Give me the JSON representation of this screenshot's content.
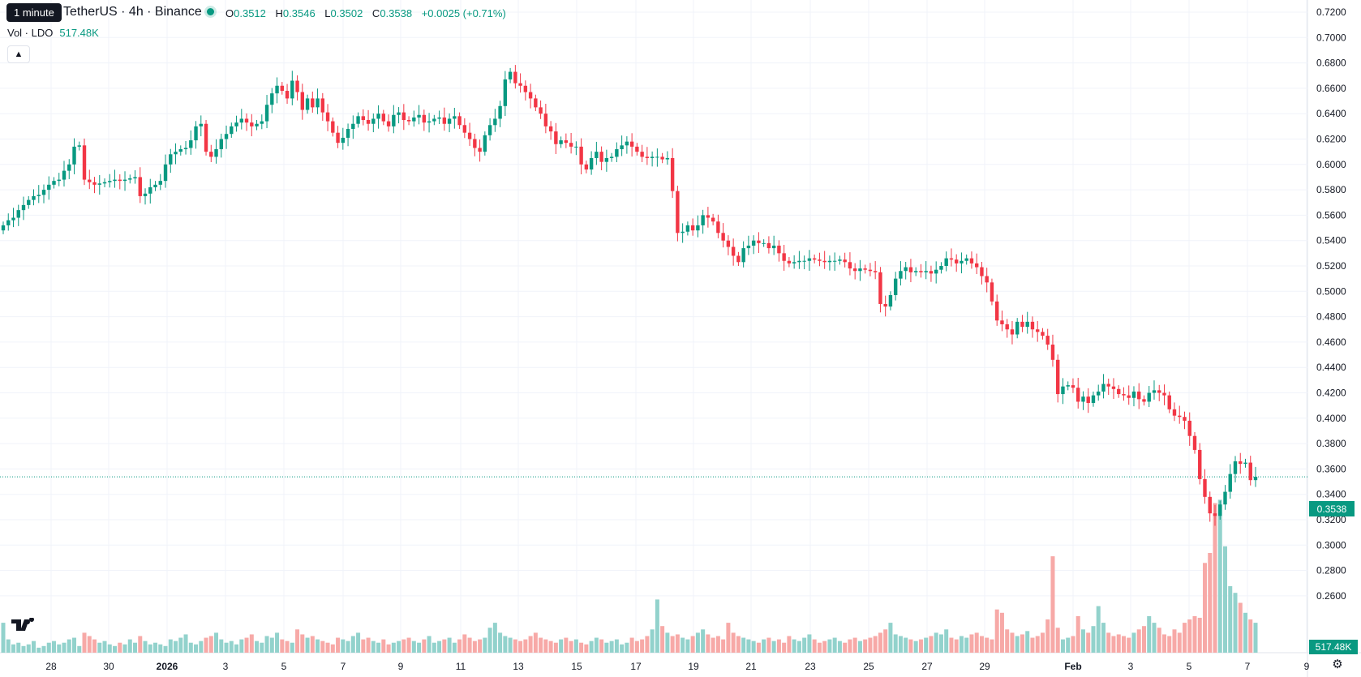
{
  "header": {
    "tooltip": "1 minute",
    "symbol": "TetherUS · 4h · Binance",
    "ohlc": [
      {
        "label": "O",
        "value": "0.3512"
      },
      {
        "label": "H",
        "value": "0.3546"
      },
      {
        "label": "L",
        "value": "0.3502"
      },
      {
        "label": "C",
        "value": "0.3538"
      }
    ],
    "change": "+0.0025 (+0.71%)",
    "volume_label": "Vol · LDO",
    "volume_value": "517.48K"
  },
  "price_badge": "0.3538",
  "volume_badge": "517.48K",
  "colors": {
    "up": "#089981",
    "down": "#f23645",
    "up_volume": "#92d2cc",
    "down_volume": "#f7a9a7",
    "grid": "#f0f3fa",
    "last_price_line": "#089981"
  },
  "icons": {
    "logo": "tradingview-logo-icon",
    "settings": "settings-gear-icon",
    "collapse": "chevron-up-icon"
  },
  "chart_data": {
    "type": "candlestick",
    "title": "TetherUS · 4h · Binance",
    "last_price": 0.3538,
    "yticks": [
      "0.7200",
      "0.7000",
      "0.6800",
      "0.6600",
      "0.6400",
      "0.6200",
      "0.6000",
      "0.5800",
      "0.5600",
      "0.5400",
      "0.5200",
      "0.5000",
      "0.4800",
      "0.4600",
      "0.4400",
      "0.4200",
      "0.4000",
      "0.3800",
      "0.3600",
      "0.3400",
      "0.3200",
      "0.3000",
      "0.2800",
      "0.2600"
    ],
    "xticks": [
      "28",
      "30",
      "2026",
      "3",
      "5",
      "7",
      "9",
      "11",
      "13",
      "15",
      "17",
      "19",
      "21",
      "23",
      "25",
      "27",
      "29",
      "Feb",
      "3",
      "5",
      "7",
      "9"
    ],
    "ylim": [
      0.246,
      0.732
    ],
    "close_series": [
      0.552,
      0.556,
      0.558,
      0.564,
      0.568,
      0.572,
      0.575,
      0.576,
      0.58,
      0.584,
      0.587,
      0.588,
      0.595,
      0.6,
      0.614,
      0.615,
      0.588,
      0.586,
      0.584,
      0.585,
      0.586,
      0.587,
      0.588,
      0.587,
      0.588,
      0.589,
      0.59,
      0.575,
      0.577,
      0.582,
      0.584,
      0.587,
      0.6,
      0.608,
      0.61,
      0.612,
      0.613,
      0.619,
      0.63,
      0.632,
      0.61,
      0.606,
      0.612,
      0.62,
      0.624,
      0.63,
      0.633,
      0.636,
      0.633,
      0.63,
      0.632,
      0.634,
      0.647,
      0.656,
      0.662,
      0.658,
      0.652,
      0.666,
      0.657,
      0.643,
      0.652,
      0.645,
      0.652,
      0.641,
      0.634,
      0.625,
      0.617,
      0.621,
      0.628,
      0.632,
      0.638,
      0.635,
      0.632,
      0.636,
      0.64,
      0.634,
      0.63,
      0.639,
      0.641,
      0.635,
      0.634,
      0.637,
      0.639,
      0.633,
      0.634,
      0.636,
      0.637,
      0.632,
      0.636,
      0.638,
      0.631,
      0.625,
      0.62,
      0.613,
      0.61,
      0.623,
      0.631,
      0.636,
      0.646,
      0.667,
      0.673,
      0.664,
      0.662,
      0.657,
      0.652,
      0.645,
      0.64,
      0.63,
      0.626,
      0.616,
      0.619,
      0.617,
      0.614,
      0.614,
      0.6,
      0.596,
      0.605,
      0.61,
      0.602,
      0.605,
      0.606,
      0.612,
      0.615,
      0.618,
      0.614,
      0.61,
      0.606,
      0.605,
      0.606,
      0.606,
      0.604,
      0.605,
      0.579,
      0.546,
      0.547,
      0.552,
      0.548,
      0.552,
      0.56,
      0.558,
      0.555,
      0.546,
      0.54,
      0.535,
      0.528,
      0.523,
      0.534,
      0.536,
      0.54,
      0.538,
      0.538,
      0.534,
      0.536,
      0.53,
      0.524,
      0.522,
      0.523,
      0.524,
      0.524,
      0.526,
      0.525,
      0.524,
      0.523,
      0.524,
      0.524,
      0.525,
      0.523,
      0.518,
      0.516,
      0.518,
      0.517,
      0.516,
      0.515,
      0.49,
      0.488,
      0.497,
      0.51,
      0.516,
      0.519,
      0.515,
      0.516,
      0.515,
      0.516,
      0.514,
      0.517,
      0.52,
      0.526,
      0.525,
      0.522,
      0.524,
      0.526,
      0.522,
      0.519,
      0.512,
      0.507,
      0.492,
      0.477,
      0.474,
      0.47,
      0.466,
      0.476,
      0.472,
      0.476,
      0.47,
      0.468,
      0.465,
      0.458,
      0.446,
      0.419,
      0.425,
      0.426,
      0.424,
      0.413,
      0.417,
      0.412,
      0.418,
      0.421,
      0.427,
      0.425,
      0.423,
      0.419,
      0.418,
      0.416,
      0.421,
      0.415,
      0.413,
      0.42,
      0.422,
      0.42,
      0.418,
      0.407,
      0.402,
      0.401,
      0.398,
      0.386,
      0.375,
      0.352,
      0.338,
      0.325,
      0.323,
      0.332,
      0.342,
      0.356,
      0.366,
      0.364,
      0.365,
      0.3512,
      0.3538
    ],
    "volume_series": [
      18,
      8,
      5,
      6,
      4,
      5,
      7,
      3,
      4,
      6,
      7,
      5,
      6,
      8,
      9,
      4,
      12,
      10,
      8,
      6,
      7,
      5,
      4,
      6,
      5,
      8,
      6,
      10,
      7,
      5,
      6,
      5,
      4,
      8,
      7,
      9,
      11,
      6,
      5,
      7,
      9,
      10,
      12,
      8,
      6,
      7,
      5,
      8,
      9,
      11,
      7,
      6,
      10,
      9,
      12,
      8,
      7,
      6,
      14,
      11,
      9,
      10,
      8,
      7,
      6,
      5,
      9,
      8,
      7,
      10,
      12,
      8,
      9,
      7,
      6,
      8,
      5,
      6,
      7,
      8,
      9,
      7,
      6,
      8,
      10,
      6,
      7,
      8,
      9,
      6,
      8,
      11,
      9,
      7,
      8,
      9,
      15,
      18,
      12,
      10,
      9,
      8,
      7,
      8,
      10,
      12,
      9,
      8,
      7,
      6,
      8,
      9,
      7,
      8,
      6,
      5,
      7,
      9,
      8,
      6,
      7,
      8,
      5,
      6,
      9,
      7,
      8,
      10,
      14,
      32,
      16,
      12,
      10,
      11,
      9,
      8,
      10,
      12,
      14,
      11,
      9,
      10,
      8,
      18,
      12,
      10,
      9,
      8,
      7,
      6,
      8,
      9,
      7,
      8,
      6,
      10,
      8,
      7,
      9,
      11,
      8,
      6,
      7,
      8,
      9,
      7,
      6,
      8,
      9,
      7,
      8,
      9,
      10,
      12,
      14,
      18,
      11,
      10,
      9,
      8,
      7,
      8,
      9,
      10,
      12,
      11,
      14,
      9,
      8,
      10,
      9,
      11,
      12,
      10,
      9,
      8,
      26,
      24,
      14,
      12,
      10,
      11,
      13,
      9,
      10,
      12,
      20,
      58,
      15,
      8,
      9,
      10,
      22,
      14,
      12,
      16,
      28,
      18,
      12,
      10,
      11,
      10,
      9,
      12,
      14,
      16,
      22,
      18,
      15,
      11,
      10,
      14,
      12,
      18,
      20,
      22,
      21,
      54,
      60,
      90,
      92,
      64,
      40,
      36,
      30,
      24,
      20,
      18,
      26,
      10
    ]
  }
}
